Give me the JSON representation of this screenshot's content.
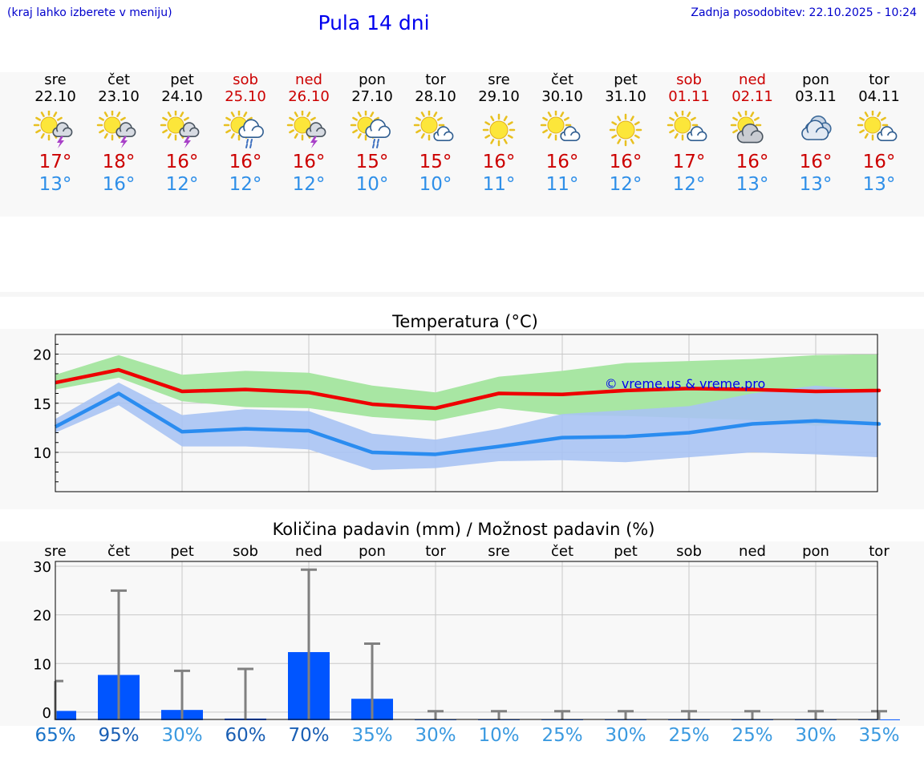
{
  "header": {
    "hint": "(kraj lahko izberete v meniju)",
    "title": "Pula 14 dni",
    "updated": "Zadnja posodobitev: 22.10.2025 - 10:24"
  },
  "days": [
    {
      "name": "sre",
      "date": "22.10",
      "tmax": "17°",
      "tmin": "13°",
      "weekend": false,
      "icon": "sun-cloud-thunder-icon"
    },
    {
      "name": "čet",
      "date": "23.10",
      "tmax": "18°",
      "tmin": "16°",
      "weekend": false,
      "icon": "sun-cloud-thunder-icon"
    },
    {
      "name": "pet",
      "date": "24.10",
      "tmax": "16°",
      "tmin": "12°",
      "weekend": false,
      "icon": "sun-cloud-thunder-icon"
    },
    {
      "name": "sob",
      "date": "25.10",
      "tmax": "16°",
      "tmin": "12°",
      "weekend": true,
      "icon": "sun-cloud-rain-icon"
    },
    {
      "name": "ned",
      "date": "26.10",
      "tmax": "16°",
      "tmin": "12°",
      "weekend": true,
      "icon": "sun-cloud-thunder-icon"
    },
    {
      "name": "pon",
      "date": "27.10",
      "tmax": "15°",
      "tmin": "10°",
      "weekend": false,
      "icon": "sun-cloud-rain-icon"
    },
    {
      "name": "tor",
      "date": "28.10",
      "tmax": "15°",
      "tmin": "10°",
      "weekend": false,
      "icon": "sun-small-cloud-icon"
    },
    {
      "name": "sre",
      "date": "29.10",
      "tmax": "16°",
      "tmin": "11°",
      "weekend": false,
      "icon": "sun-icon"
    },
    {
      "name": "čet",
      "date": "30.10",
      "tmax": "16°",
      "tmin": "11°",
      "weekend": false,
      "icon": "sun-small-cloud-icon"
    },
    {
      "name": "pet",
      "date": "31.10",
      "tmax": "16°",
      "tmin": "12°",
      "weekend": false,
      "icon": "sun-icon"
    },
    {
      "name": "sob",
      "date": "01.11",
      "tmax": "17°",
      "tmin": "12°",
      "weekend": true,
      "icon": "sun-small-cloud-icon"
    },
    {
      "name": "ned",
      "date": "02.11",
      "tmax": "16°",
      "tmin": "13°",
      "weekend": true,
      "icon": "sun-gray-cloud-icon"
    },
    {
      "name": "pon",
      "date": "03.11",
      "tmax": "16°",
      "tmin": "13°",
      "weekend": false,
      "icon": "overcast-icon"
    },
    {
      "name": "tor",
      "date": "04.11",
      "tmax": "16°",
      "tmin": "13°",
      "weekend": false,
      "icon": "sun-small-cloud-icon"
    }
  ],
  "colors": {
    "max_line": "#ee0000",
    "min_line": "#2a8cf0",
    "max_band": "#a8e6a3",
    "min_band": "#a9c3f3",
    "overlap_band": "#7cbf9d",
    "bar": "#0055ff",
    "whisker": "#808080",
    "weekend": "#cc0000"
  },
  "chart_data": [
    {
      "type": "line",
      "title": "Temperatura (°C)",
      "watermark": "© vreme.us & vreme.pro",
      "ylim": [
        6,
        22
      ],
      "yticks": [
        10,
        15,
        20
      ],
      "grid": true,
      "series": [
        {
          "values": [
            17.1,
            18.4,
            16.2,
            16.4,
            16.1,
            14.9,
            14.5,
            16.0,
            15.9,
            16.3,
            16.5,
            16.4,
            16.2,
            16.3
          ],
          "band_low": [
            16.4,
            17.6,
            15.2,
            14.6,
            14.5,
            13.6,
            13.2,
            14.5,
            13.8,
            13.7,
            13.5,
            13.3,
            12.7,
            13.0
          ],
          "band_high": [
            17.9,
            19.9,
            17.9,
            18.3,
            18.1,
            16.8,
            16.1,
            17.7,
            18.3,
            19.1,
            19.3,
            19.5,
            19.9,
            20.0
          ]
        },
        {
          "values": [
            12.6,
            16.0,
            12.1,
            12.4,
            12.2,
            10.0,
            9.8,
            10.6,
            11.5,
            11.6,
            12.0,
            12.9,
            13.2,
            12.9
          ],
          "band_low": [
            12.0,
            14.8,
            10.6,
            10.6,
            10.3,
            8.2,
            8.4,
            9.1,
            9.2,
            9.0,
            9.5,
            10.0,
            9.8,
            9.5
          ],
          "band_high": [
            13.4,
            17.1,
            13.8,
            14.4,
            14.2,
            11.9,
            11.3,
            12.4,
            13.9,
            14.3,
            14.7,
            16.0,
            16.8,
            16.2
          ]
        }
      ]
    },
    {
      "type": "bar",
      "title": "Količina padavin (mm) / Možnost padavin (%)",
      "categories": [
        "sre",
        "čet",
        "pet",
        "sob",
        "ned",
        "pon",
        "tor",
        "sre",
        "čet",
        "pet",
        "sob",
        "ned",
        "pon",
        "tor"
      ],
      "values": [
        1.9,
        9.3,
        2.1,
        0.3,
        14.0,
        4.4,
        0,
        0,
        0,
        0,
        0,
        0,
        0,
        0
      ],
      "whisker_high": [
        6.4,
        25.0,
        8.5,
        8.9,
        29.3,
        14.1,
        0.2,
        0.2,
        0.2,
        0.2,
        0.2,
        0.2,
        0.2,
        0.2
      ],
      "ylim": [
        -1.5,
        31
      ],
      "yticks": [
        0,
        10,
        20,
        30
      ],
      "grid": true,
      "probabilities": [
        "65%",
        "95%",
        "30%",
        "60%",
        "70%",
        "35%",
        "30%",
        "10%",
        "25%",
        "30%",
        "25%",
        "25%",
        "30%",
        "35%"
      ],
      "probability_colors": [
        "#1a73c8",
        "#1a5fb4",
        "#3b9ae0",
        "#1a5fb4",
        "#1a5fb4",
        "#3b9ae0",
        "#3b9ae0",
        "#3b9ae0",
        "#3b9ae0",
        "#3b9ae0",
        "#3b9ae0",
        "#3b9ae0",
        "#3b9ae0",
        "#3b9ae0"
      ]
    }
  ]
}
